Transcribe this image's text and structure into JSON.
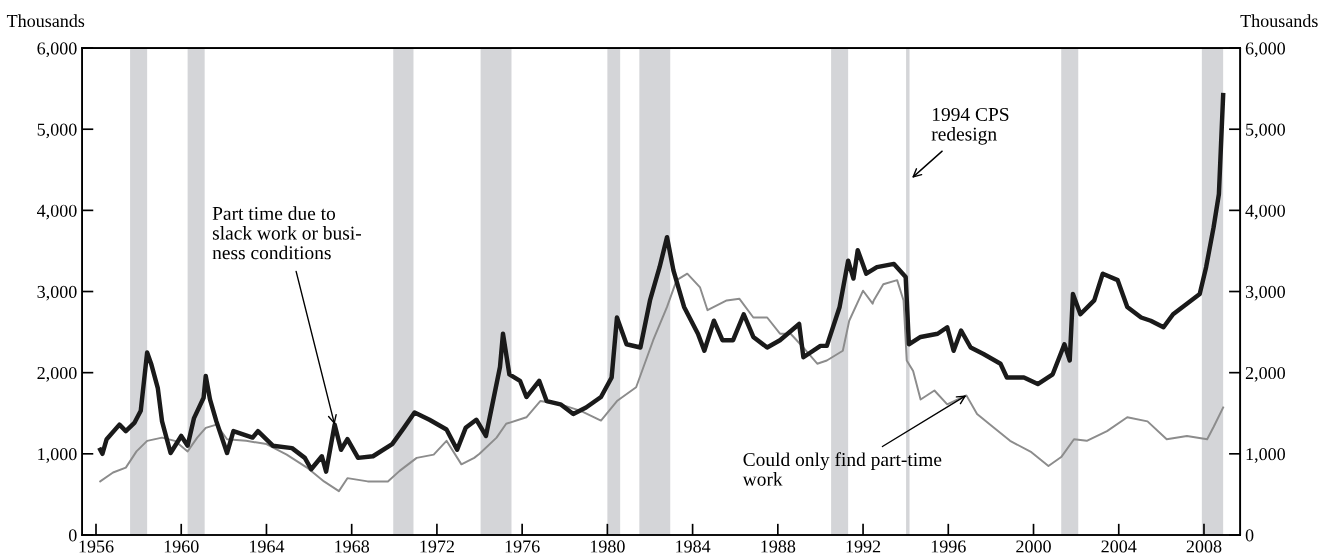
{
  "chart_data": {
    "type": "line",
    "ylabel": "Thousands",
    "y2label": "Thousands",
    "xlim": [
      1955.35,
      2009.7
    ],
    "xticks": [
      1956,
      1960,
      1964,
      1968,
      1972,
      1976,
      1980,
      1984,
      1988,
      1992,
      1996,
      2000,
      2004,
      2008
    ],
    "ylim": [
      0,
      6000
    ],
    "yticks": [
      {
        "value": 0,
        "label": "0"
      },
      {
        "value": 1000,
        "label": "1,000"
      },
      {
        "value": 2000,
        "label": "2,000"
      },
      {
        "value": 3000,
        "label": "3,000"
      },
      {
        "value": 4000,
        "label": "4,000"
      },
      {
        "value": 5000,
        "label": "5,000"
      },
      {
        "value": 6000,
        "label": "6,000"
      }
    ],
    "y2lim": [
      0,
      6000
    ],
    "y2ticks": [
      {
        "value": 0,
        "label": "0"
      },
      {
        "value": 1000,
        "label": "1,000"
      },
      {
        "value": 2000,
        "label": "2,000"
      },
      {
        "value": 3000,
        "label": "3,000"
      },
      {
        "value": 4000,
        "label": "4,000"
      },
      {
        "value": 5000,
        "label": "5,000"
      },
      {
        "value": 6000,
        "label": "6,000"
      }
    ],
    "grid": false,
    "legend": false,
    "series": [
      {
        "color": "#8c8c8c",
        "x": [
          1956.2,
          1956.8,
          1957.4,
          1957.9,
          1958.4,
          1959.1,
          1959.7,
          1960.3,
          1960.75,
          1961.15,
          1961.65,
          1962.15,
          1963.05,
          1964.0,
          1964.95,
          1965.9,
          1966.7,
          1967.4,
          1967.8,
          1968.75,
          1969.7,
          1970.25,
          1971.05,
          1971.85,
          1972.45,
          1973.15,
          1973.75,
          1974.0,
          1974.8,
          1975.25,
          1976.2,
          1976.85,
          1977.8,
          1978.75,
          1979.7,
          1980.45,
          1981.35,
          1982.15,
          1982.8,
          1983.25,
          1983.75,
          1984.35,
          1984.7,
          1985.6,
          1986.2,
          1986.85,
          1987.5,
          1988.1,
          1988.6,
          1989.2,
          1989.85,
          1990.3,
          1991.05,
          1991.35,
          1992.0,
          1992.45,
          1992.5,
          1992.95,
          1993.6,
          1993.9,
          1994.05,
          1994.35,
          1994.7,
          1995.35,
          1995.95,
          1996.85,
          1997.35,
          1998.1,
          1998.9,
          1999.9,
          2000.7,
          2001.3,
          2001.9,
          2002.5,
          2003.45,
          2004.4,
          2005.35,
          2006.25,
          2007.2,
          2008.15,
          2008.45,
          2008.9
        ],
        "values": [
          660,
          770,
          830,
          1030,
          1160,
          1200,
          1160,
          1030,
          1200,
          1320,
          1360,
          1180,
          1160,
          1120,
          990,
          830,
          660,
          540,
          700,
          660,
          660,
          790,
          950,
          990,
          1160,
          870,
          950,
          1000,
          1200,
          1370,
          1450,
          1650,
          1610,
          1530,
          1410,
          1650,
          1820,
          2400,
          2810,
          3140,
          3220,
          3050,
          2770,
          2890,
          2910,
          2680,
          2680,
          2480,
          2480,
          2310,
          2110,
          2150,
          2270,
          2640,
          3010,
          2850,
          2890,
          3090,
          3140,
          2890,
          2150,
          2020,
          1670,
          1780,
          1610,
          1720,
          1490,
          1330,
          1160,
          1020,
          850,
          960,
          1180,
          1160,
          1280,
          1450,
          1400,
          1180,
          1220,
          1180,
          1330,
          1570
        ]
      },
      {
        "color": "#1a1a1a",
        "x": [
          1956.2,
          1956.3,
          1956.5,
          1957.1,
          1957.4,
          1957.8,
          1958.1,
          1958.4,
          1958.6,
          1958.9,
          1959.1,
          1959.5,
          1960.0,
          1960.3,
          1960.6,
          1961.05,
          1961.15,
          1961.35,
          1961.65,
          1962.15,
          1962.45,
          1963.35,
          1963.6,
          1964.3,
          1965.2,
          1965.8,
          1966.1,
          1966.6,
          1966.8,
          1967.2,
          1967.5,
          1967.8,
          1968.3,
          1969.0,
          1969.9,
          1970.45,
          1970.95,
          1971.65,
          1972.45,
          1972.95,
          1973.35,
          1973.85,
          1974.3,
          1974.96,
          1975.1,
          1975.4,
          1975.9,
          1976.2,
          1976.8,
          1977.15,
          1977.8,
          1978.4,
          1979.0,
          1979.7,
          1980.2,
          1980.45,
          1980.9,
          1981.55,
          1982.0,
          1982.45,
          1982.8,
          1983.1,
          1983.6,
          1984.25,
          1984.55,
          1985.0,
          1985.4,
          1985.9,
          1986.4,
          1986.85,
          1987.5,
          1988.1,
          1989.0,
          1989.2,
          1990.0,
          1990.3,
          1990.9,
          1991.3,
          1991.55,
          1991.75,
          1992.15,
          1992.65,
          1993.45,
          1994.0,
          1994.15,
          1994.7,
          1995.5,
          1995.95,
          1996.25,
          1996.6,
          1997.05,
          1997.65,
          1998.45,
          1998.75,
          1999.55,
          2000.2,
          2000.9,
          2001.45,
          2001.7,
          2001.85,
          2002.2,
          2002.85,
          2003.25,
          2003.95,
          2004.4,
          2005.05,
          2005.5,
          2006.1,
          2006.55,
          2007.2,
          2007.8,
          2008.1,
          2008.45,
          2008.7,
          2008.9
        ],
        "values": [
          1050,
          1000,
          1180,
          1360,
          1280,
          1380,
          1530,
          2250,
          2100,
          1810,
          1400,
          1010,
          1220,
          1100,
          1440,
          1690,
          1960,
          1670,
          1400,
          1010,
          1280,
          1200,
          1280,
          1100,
          1070,
          950,
          810,
          970,
          780,
          1360,
          1050,
          1180,
          950,
          970,
          1120,
          1320,
          1510,
          1420,
          1300,
          1050,
          1320,
          1420,
          1220,
          2070,
          2480,
          1980,
          1900,
          1700,
          1900,
          1650,
          1610,
          1490,
          1570,
          1700,
          1940,
          2680,
          2350,
          2310,
          2890,
          3300,
          3670,
          3260,
          2810,
          2480,
          2270,
          2640,
          2400,
          2400,
          2720,
          2440,
          2310,
          2400,
          2600,
          2190,
          2330,
          2330,
          2810,
          3380,
          3160,
          3510,
          3220,
          3300,
          3340,
          3180,
          2350,
          2440,
          2480,
          2560,
          2270,
          2520,
          2310,
          2230,
          2110,
          1940,
          1940,
          1860,
          1980,
          2350,
          2150,
          2970,
          2720,
          2890,
          3220,
          3140,
          2810,
          2680,
          2640,
          2560,
          2720,
          2850,
          2970,
          3300,
          3790,
          4200,
          5420
        ]
      }
    ],
    "bands": [
      {
        "axis": "x",
        "from": 1957.6,
        "to": 1958.4,
        "color": "#d4d5d8"
      },
      {
        "axis": "x",
        "from": 1960.3,
        "to": 1961.1,
        "color": "#d4d5d8"
      },
      {
        "axis": "x",
        "from": 1969.95,
        "to": 1970.9,
        "color": "#d4d5d8"
      },
      {
        "axis": "x",
        "from": 1974.05,
        "to": 1975.5,
        "color": "#d4d5d8"
      },
      {
        "axis": "x",
        "from": 1980.0,
        "to": 1980.6,
        "color": "#d4d5d8"
      },
      {
        "axis": "x",
        "from": 1981.5,
        "to": 1982.95,
        "color": "#d4d5d8"
      },
      {
        "axis": "x",
        "from": 1990.5,
        "to": 1991.3,
        "color": "#d4d5d8"
      },
      {
        "axis": "x",
        "from": 2001.3,
        "to": 2002.1,
        "color": "#d4d5d8"
      },
      {
        "axis": "x",
        "from": 2007.9,
        "to": 2008.9,
        "color": "#d4d5d8"
      }
    ],
    "ref_lines": [
      {
        "axis": "x",
        "value": 1994.1,
        "color": "#d4d5d8"
      }
    ],
    "annotations": [
      {
        "text": "Part time due to\nslack work or busi-\nness conditions",
        "x": 1967.2,
        "y": 1360
      },
      {
        "text": "Could only find part-time\nwork",
        "x": 1996.85,
        "y": 1720
      },
      {
        "text": "1994 CPS\nredesign",
        "x": 1994.3,
        "y": 4400
      }
    ]
  }
}
